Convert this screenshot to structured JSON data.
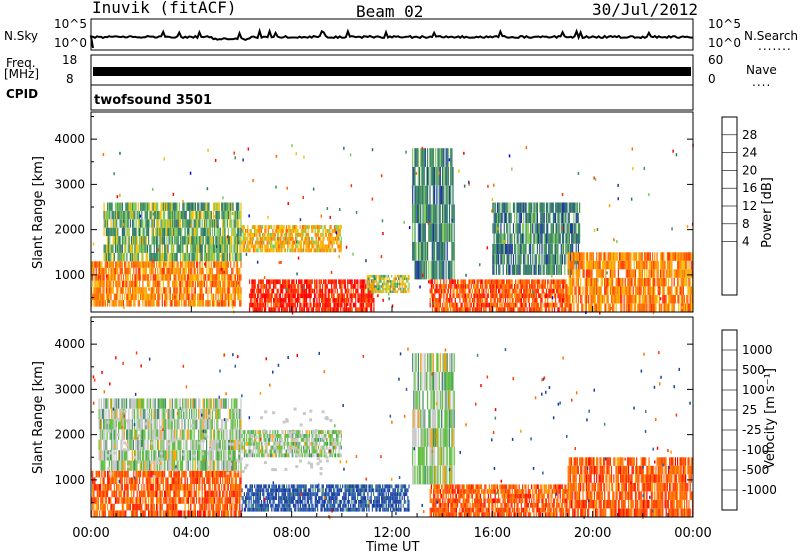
{
  "header": {
    "station": "Inuvik (fitACF)",
    "beam": "Beam 02",
    "date": "30/Jul/2012"
  },
  "panels": {
    "nsky_label": "N.Sky",
    "nsearch_label": "N.Search",
    "nsky_ticks": [
      "10^5",
      "10^0"
    ],
    "nsearch_ticks": [
      "10^5",
      "10^0"
    ],
    "freq_label_1": "Freq.",
    "freq_label_2": "[MHz]",
    "freq_ticks": [
      "18",
      "8"
    ],
    "nave_label": "Nave",
    "nave_ticks": [
      "60",
      "0"
    ],
    "cpid_label": "CPID",
    "cpid_value": "twofsound 3501"
  },
  "colorbars": {
    "power_label": "Power [dB]",
    "power_ticks": [
      "28",
      "24",
      "20",
      "16",
      "12",
      "8",
      "4"
    ],
    "power_colors": [
      "#ff0000",
      "#ff3300",
      "#ff6a00",
      "#ff9900",
      "#f5c000",
      "#7fc95a",
      "#3f8f5f",
      "#2f6f6f",
      "#1e3a9a",
      "#0000ff"
    ],
    "velocity_label": "Velocity [m s⁻¹]",
    "velocity_ticks": [
      "1000",
      "500",
      "100",
      "25",
      "-25",
      "-100",
      "-500",
      "-1000"
    ],
    "velocity_colors": [
      "#1a3fa0",
      "#2f5fb0",
      "#3f8f6f",
      "#5fc040",
      "#c8c8c8",
      "#ffa000",
      "#ff7000",
      "#ff3a00",
      "#ff0000"
    ]
  },
  "axes": {
    "ylabel": "Slant Range [km]",
    "yticks": [
      "4000",
      "3000",
      "2000",
      "1000"
    ],
    "xlabel": "Time UT",
    "xticks": [
      "00:00",
      "04:00",
      "08:00",
      "12:00",
      "16:00",
      "20:00",
      "00:00"
    ]
  },
  "chart_data": [
    {
      "type": "heatmap",
      "name": "power",
      "x": [
        "00:00",
        "04:00",
        "08:00",
        "12:00",
        "16:00",
        "20:00",
        "00:00"
      ],
      "ylim": [
        180,
        4600
      ],
      "colorbar": {
        "label": "Power [dB]",
        "range": [
          0,
          30
        ]
      },
      "regions": [
        {
          "t0": 0.0,
          "t1": 6.0,
          "r0": 300,
          "r1": 1300,
          "level": 20
        },
        {
          "t0": 0.5,
          "t1": 6.0,
          "r0": 1300,
          "r1": 2600,
          "level": 10
        },
        {
          "t0": 6.3,
          "t1": 11.3,
          "r0": 180,
          "r1": 900,
          "level": 28
        },
        {
          "t0": 6.0,
          "t1": 10.0,
          "r0": 1500,
          "r1": 2100,
          "level": 18
        },
        {
          "t0": 11.0,
          "t1": 12.7,
          "r0": 600,
          "r1": 1000,
          "level": 15
        },
        {
          "t0": 12.8,
          "t1": 14.5,
          "r0": 900,
          "r1": 3800,
          "level": 8
        },
        {
          "t0": 13.5,
          "t1": 19.0,
          "r0": 180,
          "r1": 900,
          "level": 24
        },
        {
          "t0": 16.0,
          "t1": 19.5,
          "r0": 1000,
          "r1": 2600,
          "level": 8
        },
        {
          "t0": 19.0,
          "t1": 24.0,
          "r0": 180,
          "r1": 1500,
          "level": 20
        }
      ]
    },
    {
      "type": "heatmap",
      "name": "velocity",
      "x": [
        "00:00",
        "04:00",
        "08:00",
        "12:00",
        "16:00",
        "20:00",
        "00:00"
      ],
      "ylim": [
        180,
        4600
      ],
      "colorbar": {
        "label": "Velocity [m s⁻¹]",
        "range": [
          -1000,
          1000
        ]
      },
      "regions": [
        {
          "t0": 0.0,
          "t1": 6.0,
          "r0": 180,
          "r1": 1200,
          "level": -100
        },
        {
          "t0": 0.3,
          "t1": 6.0,
          "r0": 1200,
          "r1": 2800,
          "level": 0
        },
        {
          "t0": 6.0,
          "t1": 12.7,
          "r0": 300,
          "r1": 900,
          "level": 100
        },
        {
          "t0": 6.0,
          "t1": 10.0,
          "r0": 1500,
          "r1": 2100,
          "level": 0
        },
        {
          "t0": 12.8,
          "t1": 14.5,
          "r0": 900,
          "r1": 3800,
          "level": 0
        },
        {
          "t0": 13.5,
          "t1": 19.0,
          "r0": 180,
          "r1": 900,
          "level": -100
        },
        {
          "t0": 19.0,
          "t1": 24.0,
          "r0": 180,
          "r1": 1500,
          "level": -300
        }
      ]
    }
  ]
}
